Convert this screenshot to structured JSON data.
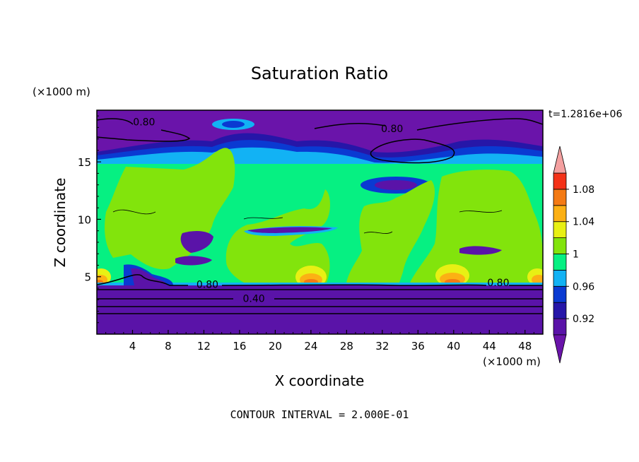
{
  "chart_data": {
    "type": "heatmap",
    "title": "Saturation Ratio",
    "xlabel": "X coordinate",
    "ylabel": "Z coordinate",
    "x_unit": "(×1000 m)",
    "y_unit": "(×1000 m)",
    "time_label": "t=1.2816e+06",
    "footer": "CONTOUR INTERVAL = 2.000E-01",
    "xlim": [
      0,
      50
    ],
    "ylim": [
      0,
      19.5
    ],
    "x_ticks": [
      4,
      8,
      12,
      16,
      20,
      24,
      28,
      32,
      36,
      40,
      44,
      48
    ],
    "y_ticks": [
      5,
      10,
      15
    ],
    "colorbar": {
      "levels": [
        0.92,
        0.94,
        0.96,
        0.98,
        1.0,
        1.02,
        1.04,
        1.06,
        1.08,
        1.1
      ],
      "tick_labels": [
        "0.92",
        "0.96",
        "1",
        "1.04",
        "1.08"
      ],
      "tick_values": [
        0.92,
        0.96,
        1.0,
        1.04,
        1.08
      ],
      "colors": [
        "#5a13a8",
        "#2616a8",
        "#0a3ad2",
        "#12b2f4",
        "#06f082",
        "#82e40c",
        "#e8f014",
        "#fcb014",
        "#f47a14",
        "#f43218",
        "#f4a0a0"
      ],
      "below_color": "#6a14aa",
      "above_color": "#f4a0a0"
    },
    "contour_labels": [
      {
        "text": "0.80",
        "x": 5.3,
        "z": 18.5
      },
      {
        "text": "0.80",
        "x": 33.1,
        "z": 17.9
      },
      {
        "text": "0.80",
        "x": 12.4,
        "z": 4.35
      },
      {
        "text": "0.80",
        "x": 45.0,
        "z": 4.5
      },
      {
        "text": "0.40",
        "x": 17.6,
        "z": 3.1
      }
    ]
  }
}
